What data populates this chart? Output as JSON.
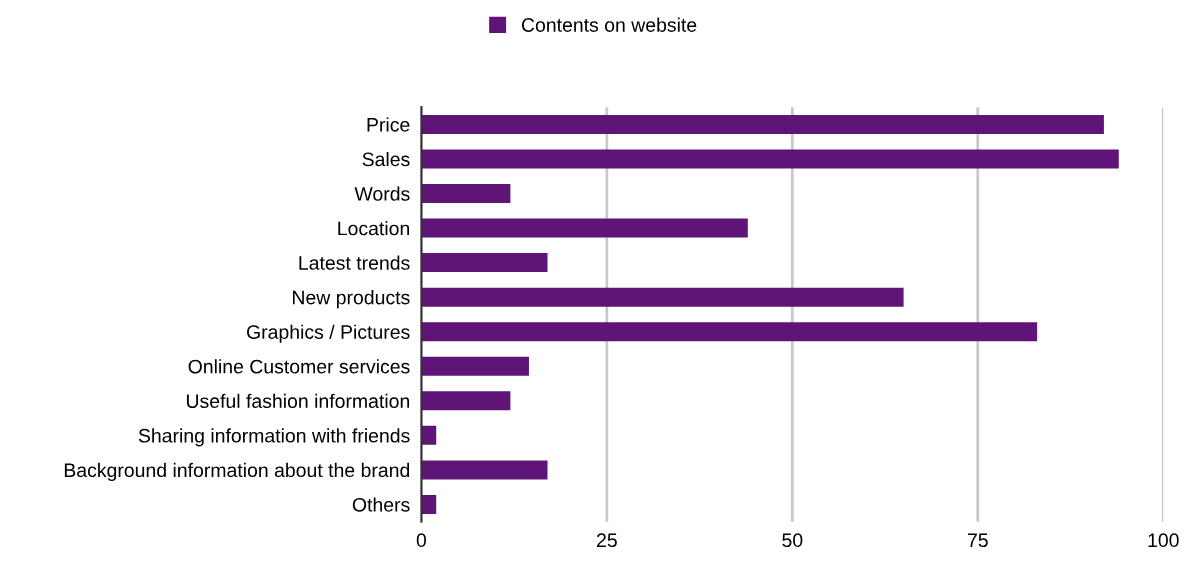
{
  "chart_data": {
    "type": "bar",
    "orientation": "horizontal",
    "categories": [
      "Price",
      "Sales",
      "Words",
      "Location",
      "Latest trends",
      "New products",
      "Graphics / Pictures",
      "Online Customer services",
      "Useful fashion information",
      "Sharing information with friends",
      "Background information about the brand",
      "Others"
    ],
    "series": [
      {
        "name": "Contents on website",
        "color": "#5f1478",
        "values": [
          92,
          94,
          12,
          44,
          17,
          65,
          83,
          14.5,
          12,
          2,
          17,
          2
        ]
      }
    ],
    "xlim": [
      0,
      100
    ],
    "xticks": [
      0,
      25,
      50,
      75,
      100
    ],
    "grid": "x",
    "legend": "top"
  }
}
